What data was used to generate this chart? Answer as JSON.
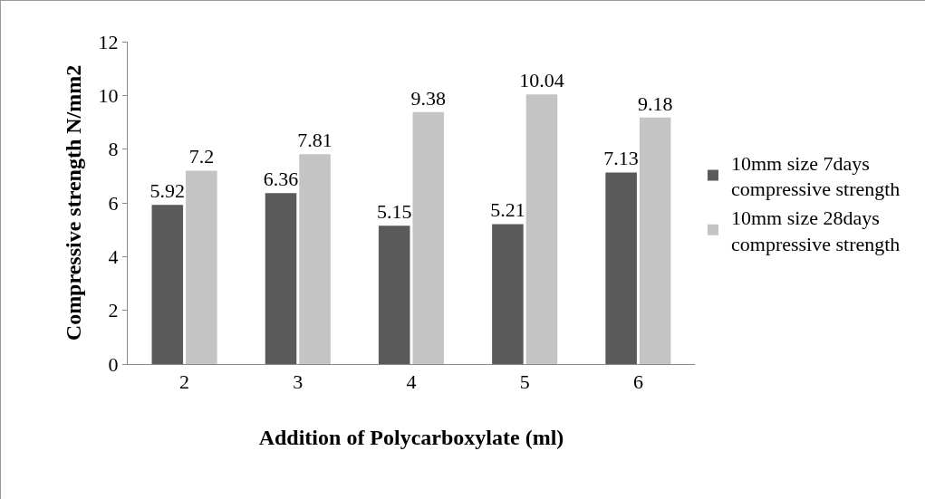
{
  "chart_data": {
    "type": "bar",
    "xlabel": "Addition of Polycarboxylate (ml)",
    "ylabel": "Compressive strength N/mm2",
    "categories": [
      "2",
      "3",
      "4",
      "5",
      "6"
    ],
    "series": [
      {
        "name": "10mm size 7days compressive strength",
        "color": "#5a5a5a",
        "values": [
          5.92,
          6.36,
          5.15,
          5.21,
          7.13
        ]
      },
      {
        "name": "10mm size 28days compressive strength",
        "color": "#c4c4c4",
        "values": [
          7.2,
          7.81,
          9.38,
          10.04,
          9.18
        ]
      }
    ],
    "ylim": [
      0,
      12
    ],
    "yticks": [
      0,
      2,
      4,
      6,
      8,
      10,
      12
    ],
    "grid": false,
    "legend": "right",
    "data_labels": true
  }
}
